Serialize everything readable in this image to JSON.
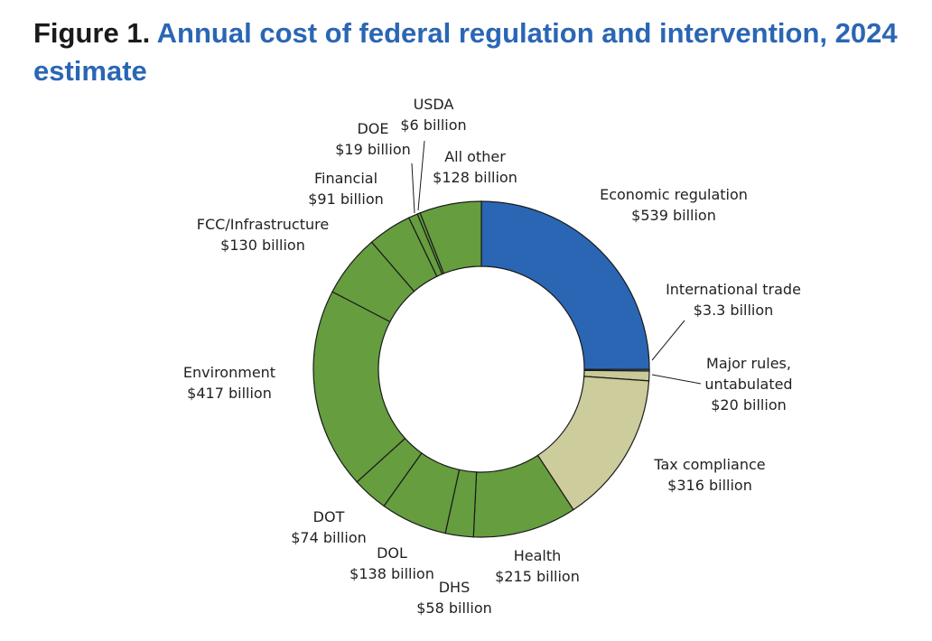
{
  "figure_label": "Figure 1.",
  "chart_data": {
    "type": "pie",
    "donut": true,
    "title": "Annual cost of federal regulation and intervention, 2024 estimate",
    "unit": "billion dollars",
    "slices": [
      {
        "name": "Economic regulation",
        "value": 539,
        "value_label": "$539 billion",
        "color": "#2a66b4"
      },
      {
        "name": "International trade",
        "value": 3.3,
        "value_label": "$3.3 billion",
        "color": "#b8b8b8"
      },
      {
        "name": "Major rules, untabulated",
        "value": 20,
        "value_label": "$20 billion",
        "color": "#c9c99a"
      },
      {
        "name": "Tax compliance",
        "value": 316,
        "value_label": "$316 billion",
        "color": "#cccc9c"
      },
      {
        "name": "Health",
        "value": 215,
        "value_label": "$215 billion",
        "color": "#659d3f"
      },
      {
        "name": "DHS",
        "value": 58,
        "value_label": "$58 billion",
        "color": "#659d3f"
      },
      {
        "name": "DOL",
        "value": 138,
        "value_label": "$138 billion",
        "color": "#659d3f"
      },
      {
        "name": "DOT",
        "value": 74,
        "value_label": "$74 billion",
        "color": "#659d3f"
      },
      {
        "name": "Environment",
        "value": 417,
        "value_label": "$417 billion",
        "color": "#659d3f"
      },
      {
        "name": "FCC/Infrastructure",
        "value": 130,
        "value_label": "$130 billion",
        "color": "#659d3f"
      },
      {
        "name": "Financial",
        "value": 91,
        "value_label": "$91 billion",
        "color": "#659d3f"
      },
      {
        "name": "DOE",
        "value": 19,
        "value_label": "$19 billion",
        "color": "#659d3f"
      },
      {
        "name": "USDA",
        "value": 6,
        "value_label": "$6 billion",
        "color": "#659d3f"
      },
      {
        "name": "All other",
        "value": 128,
        "value_label": "$128 billion",
        "color": "#659d3f"
      }
    ]
  }
}
